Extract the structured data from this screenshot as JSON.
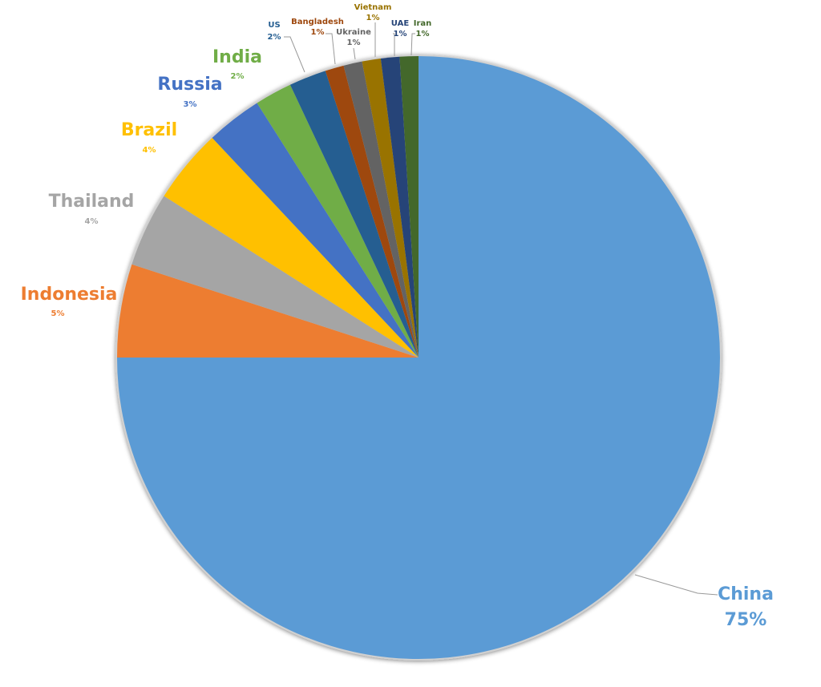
{
  "chart_data": {
    "type": "pie",
    "categories": [
      "China",
      "Indonesia",
      "Thailand",
      "Brazil",
      "Russia",
      "India",
      "US",
      "Bangladesh",
      "Ukraine",
      "Vietnam",
      "UAE",
      "Iran"
    ],
    "values": [
      75,
      5,
      4,
      4,
      3,
      2,
      2,
      1,
      1,
      1,
      1,
      1
    ],
    "value_labels": [
      "75%",
      "5%",
      "4%",
      "4%",
      "3%",
      "2%",
      "2%",
      "1%",
      "1%",
      "1%",
      "1%",
      "1%"
    ],
    "colors": [
      "#5b9bd5",
      "#ed7d31",
      "#a5a5a5",
      "#ffc000",
      "#4472c4",
      "#70ad47",
      "#255e91",
      "#9e480e",
      "#636363",
      "#997300",
      "#264478",
      "#43682b"
    ]
  }
}
